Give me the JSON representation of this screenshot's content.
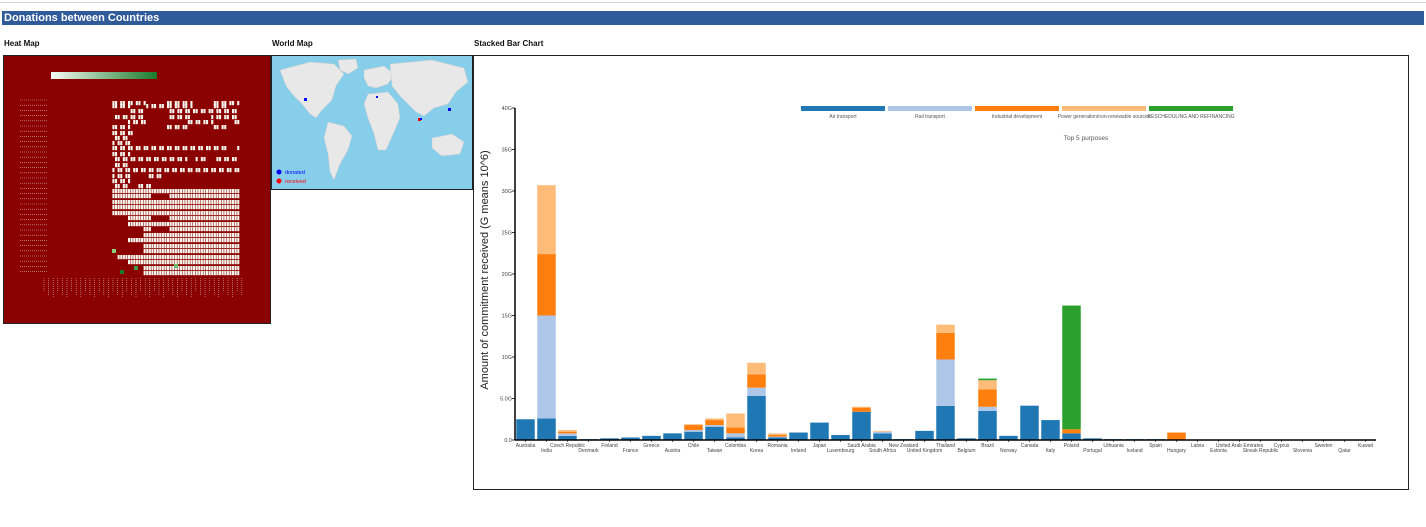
{
  "page": {
    "title": "Donations between Countries"
  },
  "sections": {
    "heat_map": "Heat Map",
    "world_map": "World Map",
    "stacked_bar": "Stacked Bar Chart"
  },
  "world_legend": {
    "donated": "donated",
    "received": "received",
    "donated_color": "#0000ff",
    "received_color": "#ff0000"
  },
  "chart_data": {
    "type": "bar",
    "stacked": true,
    "title": "Top 5 purposes",
    "xlabel": "",
    "ylabel": "Amount of commitment received (G means 10^6)",
    "ylim": [
      0,
      40
    ],
    "yticks": [
      "0.0",
      "5.0G",
      "10G",
      "15G",
      "20G",
      "25G",
      "30G",
      "35G",
      "40G"
    ],
    "grid": false,
    "legend_position": "top",
    "categories": [
      "Australia",
      "India",
      "Czech Republic",
      "Denmark",
      "Finland",
      "France",
      "Greece",
      "Austria",
      "Chile",
      "Taiwan",
      "Colombia",
      "Korea",
      "Romania",
      "Ireland",
      "Japan",
      "Luxembourg",
      "Saudi Arabia",
      "South Africa",
      "New Zealand",
      "United Kingdom",
      "Thailand",
      "Belgium",
      "Brazil",
      "Norway",
      "Canada",
      "Italy",
      "Poland",
      "Portugal",
      "Lithuania",
      "Iceland",
      "Spain",
      "Hungary",
      "Latvia",
      "Estonia",
      "United Arab Emirates",
      "Slovak Republic",
      "Cyprus",
      "Slovenia",
      "Sweden",
      "Qatar",
      "Kuwait"
    ],
    "series": [
      {
        "name": "Air transport",
        "color": "#1f77b4",
        "values": [
          2.5,
          2.6,
          0.5,
          0.1,
          0.2,
          0.3,
          0.5,
          0.8,
          1.0,
          1.6,
          0.3,
          5.3,
          0.3,
          0.9,
          2.1,
          0.6,
          3.4,
          0.8,
          0.1,
          1.1,
          4.1,
          0.2,
          3.5,
          0.5,
          4.1,
          2.4,
          0.8,
          0.2,
          0.1,
          0.1,
          0.1,
          0,
          0,
          0,
          0,
          0,
          0,
          0,
          0,
          0,
          0
        ]
      },
      {
        "name": "Rail transport",
        "color": "#aec7e8",
        "values": [
          0,
          12.4,
          0.3,
          0,
          0,
          0,
          0,
          0,
          0.2,
          0.2,
          0.5,
          1.0,
          0.1,
          0,
          0,
          0,
          0,
          0.2,
          0,
          0,
          5.6,
          0,
          0.5,
          0,
          0.1,
          0,
          0,
          0,
          0,
          0,
          0,
          0,
          0,
          0,
          0,
          0,
          0,
          0,
          0,
          0,
          0
        ]
      },
      {
        "name": "Industrial development",
        "color": "#ff7f0e",
        "values": [
          0,
          7.4,
          0.2,
          0,
          0,
          0,
          0,
          0,
          0.6,
          0.6,
          0.7,
          1.6,
          0.2,
          0,
          0,
          0,
          0.5,
          0,
          0,
          0,
          3.2,
          0,
          2.1,
          0,
          0,
          0,
          0.5,
          0,
          0,
          0,
          0,
          0.9,
          0,
          0,
          0,
          0,
          0,
          0,
          0,
          0,
          0
        ]
      },
      {
        "name": "Power generation/non-renewable sources",
        "color": "#ffbb78",
        "values": [
          0,
          8.3,
          0.2,
          0,
          0,
          0,
          0,
          0,
          0.1,
          0.2,
          1.7,
          1.4,
          0.2,
          0,
          0,
          0,
          0.1,
          0.1,
          0,
          0,
          1.0,
          0,
          1.1,
          0,
          0,
          0,
          0,
          0,
          0,
          0,
          0,
          0,
          0,
          0,
          0,
          0,
          0,
          0,
          0,
          0,
          0
        ]
      },
      {
        "name": "RESCHEDULING AND REFINANCING",
        "color": "#2ca02c",
        "values": [
          0,
          0,
          0,
          0,
          0,
          0,
          0,
          0,
          0,
          0,
          0,
          0,
          0,
          0,
          0,
          0,
          0,
          0,
          0,
          0,
          0,
          0,
          0.2,
          0,
          0,
          0,
          14.9,
          0,
          0,
          0,
          0,
          0,
          0,
          0,
          0,
          0,
          0,
          0,
          0,
          0,
          0
        ]
      }
    ]
  }
}
